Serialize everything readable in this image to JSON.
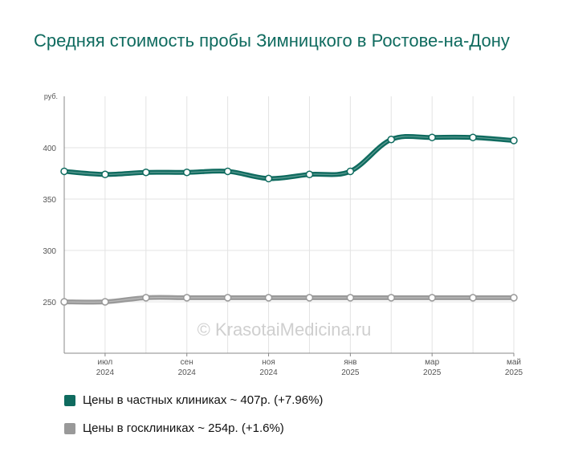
{
  "title": "Средняя стоимость пробы Зимницкого в Ростове-на-Дону",
  "watermark": "© KrasotaiMedicina.ru",
  "chart_data": {
    "type": "line",
    "y_unit": "руб.",
    "ylim": [
      200,
      450
    ],
    "yticks": [
      250,
      300,
      350,
      400
    ],
    "grid": true,
    "x": [
      "2024-06",
      "2024-07",
      "2024-08",
      "2024-09",
      "2024-10",
      "2024-11",
      "2024-12",
      "2025-01",
      "2025-02",
      "2025-03",
      "2025-04",
      "2025-05"
    ],
    "xticks": [
      {
        "month": "июл",
        "year": "2024",
        "index": 1
      },
      {
        "month": "сен",
        "year": "2024",
        "index": 3
      },
      {
        "month": "ноя",
        "year": "2024",
        "index": 5
      },
      {
        "month": "янв",
        "year": "2025",
        "index": 7
      },
      {
        "month": "мар",
        "year": "2025",
        "index": 9
      },
      {
        "month": "май",
        "year": "2025",
        "index": 11
      }
    ],
    "series": [
      {
        "name": "Цены в частных клиниках",
        "color": "#0f6b5f",
        "values": [
          377,
          374,
          376,
          376,
          377,
          370,
          374,
          377,
          408,
          410,
          410,
          407
        ]
      },
      {
        "name": "Цены в госклиниках",
        "color": "#999999",
        "values": [
          250,
          250,
          254,
          254,
          254,
          254,
          254,
          254,
          254,
          254,
          254,
          254
        ]
      }
    ]
  },
  "legend": [
    {
      "label": "Цены в частных клиниках ~ 407р. (+7.96%)",
      "color": "#0f6b5f"
    },
    {
      "label": "Цены в госклиниках ~ 254р. (+1.6%)",
      "color": "#999999"
    }
  ]
}
